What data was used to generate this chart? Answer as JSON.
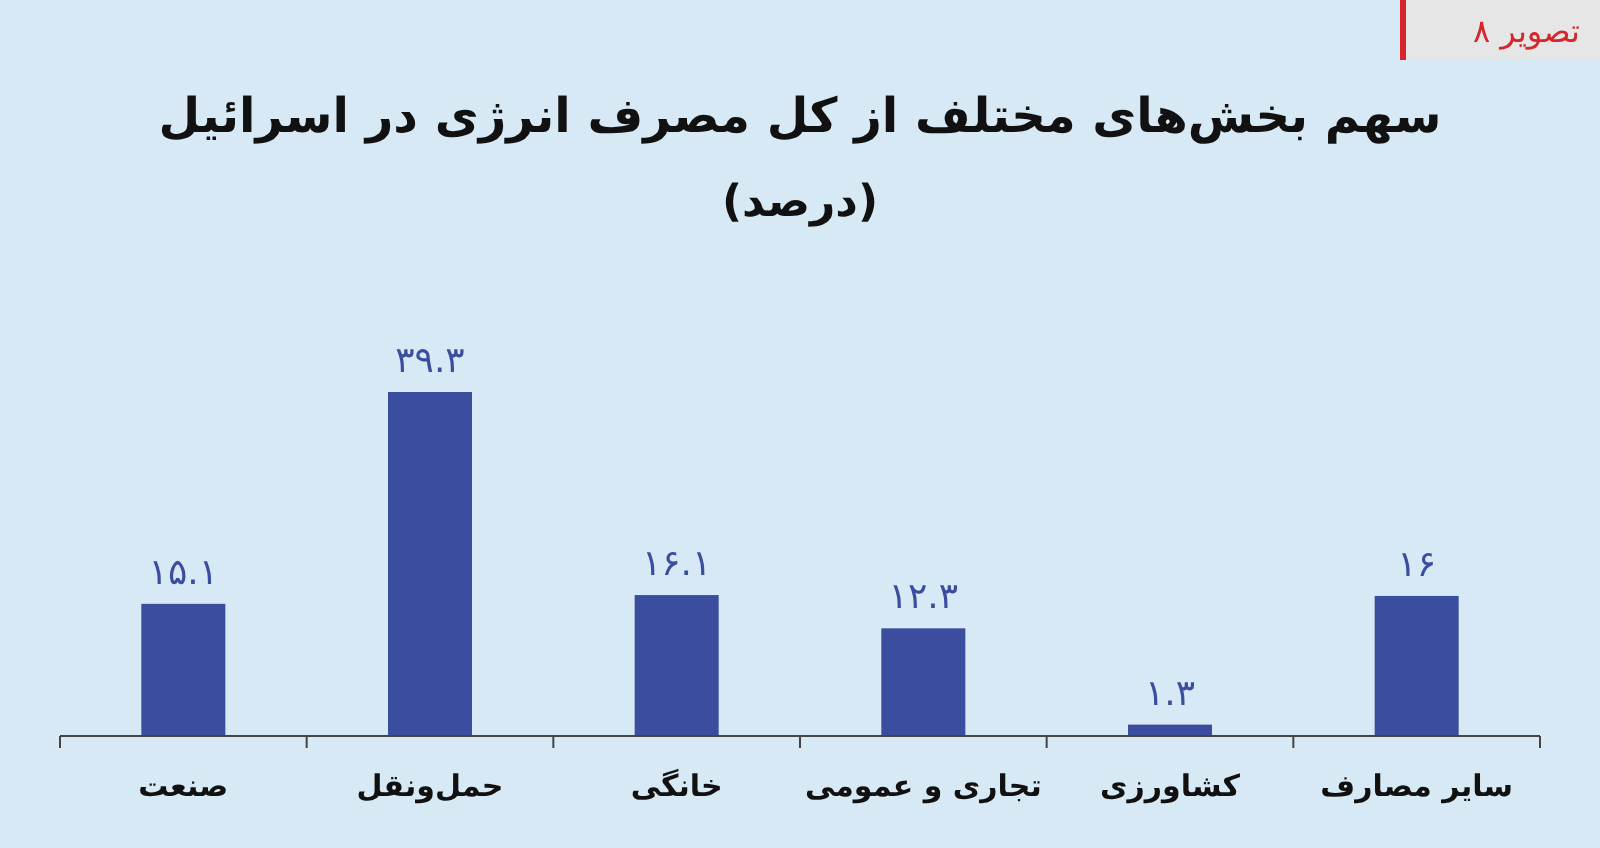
{
  "chart_data": {
    "type": "bar",
    "title": "سهم بخش‌های مختلف از کل مصرف انرژی در اسرائیل",
    "subtitle": "(درصد)",
    "categories": [
      "صنعت",
      "حمل‌ونقل",
      "خانگی",
      "تجاری و عمومی",
      "کشاورزی",
      "سایر مصارف"
    ],
    "values": [
      15.1,
      39.3,
      16.1,
      12.3,
      1.3,
      16
    ],
    "value_labels": [
      "۱۵.۱",
      "۳۹.۳",
      "۱۶.۱",
      "۱۲.۳",
      "۱.۳",
      "۱۶"
    ],
    "color": "#3b4d9e",
    "annotations": [
      "تصویر ۸"
    ]
  }
}
